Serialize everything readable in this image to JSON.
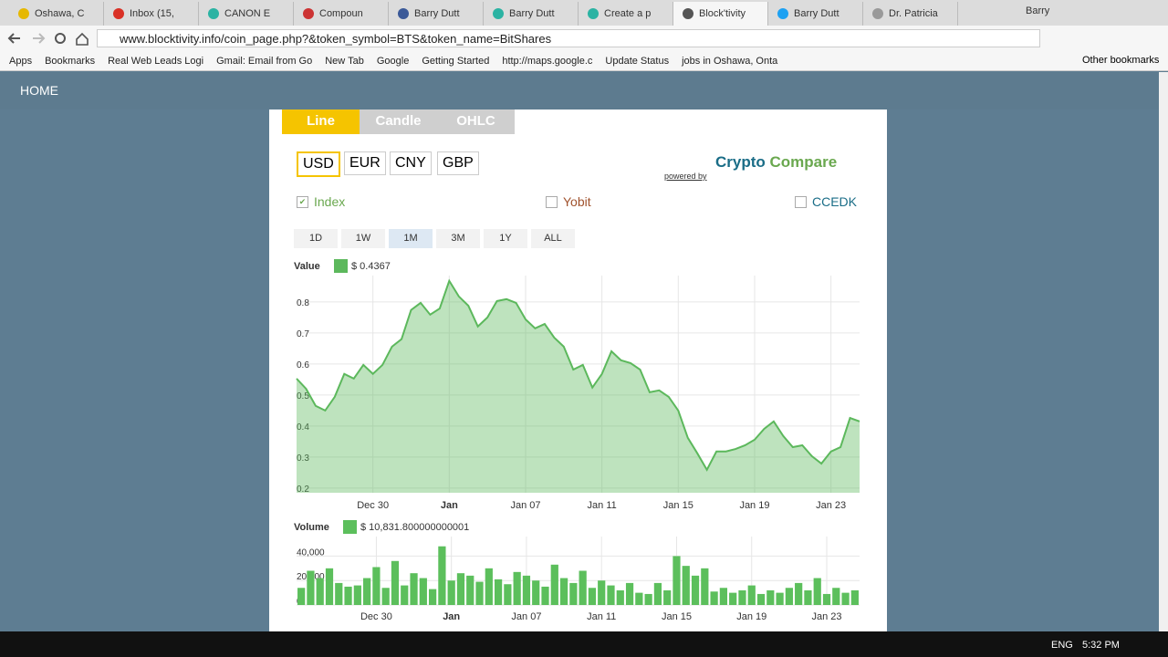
{
  "browser": {
    "tabs": [
      "Oshawa, C",
      "Inbox (15,",
      "CANON E",
      "Compoun",
      "Barry Dutt",
      "Barry Dutt",
      "Create a p",
      "Block'tivity",
      "Barry Dutt",
      "Dr. Patricia"
    ],
    "user": "Barry",
    "url": "www.blocktivity.info/coin_page.php?&token_symbol=BTS&token_name=BitShares",
    "bookmarks": [
      "Apps",
      "Bookmarks",
      "Real Web Leads Logi",
      "Gmail: Email from Go",
      "New Tab",
      "Google",
      "Getting Started",
      "http://maps.google.c",
      "Update Status",
      "jobs in Oshawa, Onta"
    ],
    "other_bookmarks": "Other bookmarks"
  },
  "nav": {
    "home": "HOME"
  },
  "chart_tabs": [
    "Line",
    "Candle",
    "OHLC"
  ],
  "currencies": [
    "USD",
    "EUR",
    "CNY",
    "GBP"
  ],
  "powered_by": "powered by",
  "logo": [
    "Crypto",
    "Compare"
  ],
  "exchanges": [
    "Index",
    "Yobit",
    "CCEDK"
  ],
  "ranges": [
    "1D",
    "1W",
    "1M",
    "3M",
    "1Y",
    "ALL"
  ],
  "chart_data": [
    {
      "type": "area",
      "legend_label": "Value",
      "readout": "$ 0.4367",
      "categories": [
        null,
        null,
        null,
        null,
        null,
        null,
        null,
        null,
        "Dec 30",
        null,
        null,
        null,
        null,
        null,
        null,
        null,
        "Jan",
        null,
        null,
        null,
        null,
        null,
        null,
        null,
        "Jan 07",
        null,
        null,
        null,
        null,
        null,
        null,
        null,
        "Jan 11",
        null,
        null,
        null,
        null,
        null,
        null,
        null,
        "Jan 15",
        null,
        null,
        null,
        null,
        null,
        null,
        null,
        "Jan 19",
        null,
        null,
        null,
        null,
        null,
        null,
        null,
        "Jan 23",
        null,
        null,
        null
      ],
      "series": [
        {
          "name": "Value",
          "color": "#5cb85c",
          "values": [
            0.553,
            0.52,
            0.465,
            0.45,
            0.494,
            0.568,
            0.553,
            0.597,
            0.568,
            0.597,
            0.656,
            0.68,
            0.774,
            0.797,
            0.759,
            0.779,
            0.868,
            0.818,
            0.788,
            0.721,
            0.75,
            0.803,
            0.809,
            0.797,
            0.744,
            0.715,
            0.729,
            0.685,
            0.656,
            0.582,
            0.597,
            0.524,
            0.568,
            0.641,
            0.612,
            0.603,
            0.582,
            0.509,
            0.515,
            0.494,
            0.45,
            0.362,
            0.312,
            0.259,
            0.318,
            0.318,
            0.326,
            0.338,
            0.356,
            0.391,
            0.415,
            0.368,
            0.332,
            0.338,
            0.303,
            0.279,
            0.318,
            0.332,
            0.426,
            0.415
          ]
        }
      ],
      "ylim": [
        0.185,
        0.885
      ],
      "yticks": [
        0.2,
        0.3,
        0.4,
        0.5,
        0.6,
        0.7,
        0.8
      ],
      "grid": true
    },
    {
      "type": "bar",
      "legend_label": "Volume",
      "readout": "$ 10,831.800000000001",
      "categories": [
        null,
        null,
        null,
        null,
        null,
        null,
        null,
        null,
        "Dec 30",
        null,
        null,
        null,
        null,
        null,
        null,
        null,
        "Jan",
        null,
        null,
        null,
        null,
        null,
        null,
        null,
        "Jan 07",
        null,
        null,
        null,
        null,
        null,
        null,
        null,
        "Jan 11",
        null,
        null,
        null,
        null,
        null,
        null,
        null,
        "Jan 15",
        null,
        null,
        null,
        null,
        null,
        null,
        null,
        "Jan 19",
        null,
        null,
        null,
        null,
        null,
        null,
        null,
        "Jan 23",
        null,
        null,
        null
      ],
      "series": [
        {
          "name": "Volume",
          "color": "#5cbf5c",
          "values": [
            14000,
            28000,
            22000,
            30000,
            18000,
            15000,
            16000,
            22000,
            31000,
            14000,
            36000,
            16000,
            26000,
            22000,
            13000,
            48000,
            20000,
            26000,
            24000,
            19000,
            30000,
            21000,
            17000,
            27000,
            24000,
            20000,
            15000,
            33000,
            22000,
            18000,
            28000,
            14000,
            20000,
            16000,
            12000,
            18000,
            10000,
            9000,
            18000,
            12000,
            40000,
            32000,
            24000,
            30000,
            11000,
            14000,
            10000,
            12000,
            16000,
            9000,
            12000,
            10000,
            14000,
            18000,
            12000,
            22000,
            9000,
            14000,
            10000,
            12000
          ]
        }
      ],
      "ylim": [
        0,
        56000
      ],
      "yticks": [
        0,
        {
          "value": 20000,
          "label": "20,000"
        },
        {
          "value": 40000,
          "label": "40,000"
        }
      ],
      "grid": true
    }
  ],
  "taskbar": {
    "lang": "ENG",
    "time": "5:32 PM"
  }
}
